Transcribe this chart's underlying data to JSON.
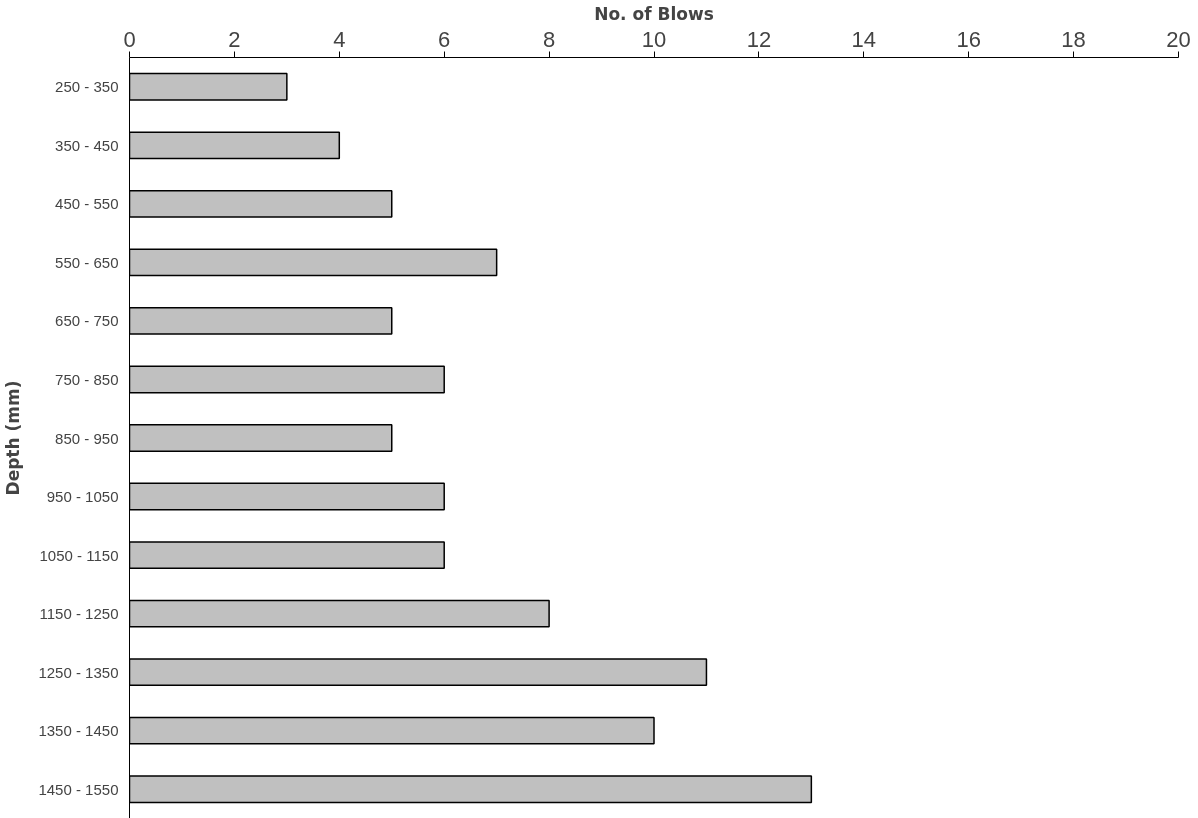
{
  "chart_data": {
    "type": "bar",
    "orientation": "horizontal",
    "xlabel": "No. of Blows",
    "ylabel": "Depth (mm)",
    "categories": [
      "250 - 350",
      "350 - 450",
      "450 - 550",
      "550 - 650",
      "650 - 750",
      "750 - 850",
      "850 - 950",
      "950 - 1050",
      "1050 - 1150",
      "1150 - 1250",
      "1250 - 1350",
      "1350 - 1450",
      "1450 - 1550"
    ],
    "values": [
      3,
      4,
      5,
      7,
      5,
      6,
      5,
      6,
      6,
      8,
      11,
      10,
      13
    ],
    "color": "#c0c0c0",
    "xlim": [
      0,
      20
    ],
    "xticks": [
      0,
      2,
      4,
      6,
      8,
      10,
      12,
      14,
      16,
      18,
      20
    ]
  }
}
